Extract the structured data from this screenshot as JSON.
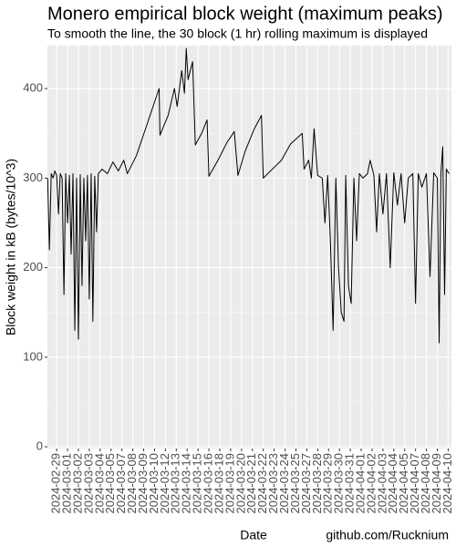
{
  "chart_data": {
    "type": "line",
    "title": "Monero empirical block weight (maximum peaks)",
    "subtitle": "To smooth the line, the 30 block (1 hr) rolling maximum is displayed",
    "x_label": "Date",
    "y_label": "Block weight in kB (bytes/10^3)",
    "caption": "github.com/Rucknium",
    "color": "#000000",
    "grid": true,
    "xlim": [
      -0.85,
      36.3
    ],
    "ylim": [
      -2,
      448
    ],
    "xticks": [
      {
        "value": 0,
        "label": "2024-02-29"
      },
      {
        "value": 1,
        "label": "2024-03-01"
      },
      {
        "value": 2,
        "label": "2024-03-02"
      },
      {
        "value": 3,
        "label": "2024-03-03"
      },
      {
        "value": 4,
        "label": "2024-03-04"
      },
      {
        "value": 5,
        "label": "2024-03-05"
      },
      {
        "value": 6,
        "label": "2024-03-07"
      },
      {
        "value": 7,
        "label": "2024-03-08"
      },
      {
        "value": 8,
        "label": "2024-03-09"
      },
      {
        "value": 9,
        "label": "2024-03-10"
      },
      {
        "value": 10,
        "label": "2024-03-12"
      },
      {
        "value": 11,
        "label": "2024-03-13"
      },
      {
        "value": 12,
        "label": "2024-03-14"
      },
      {
        "value": 13,
        "label": "2024-03-15"
      },
      {
        "value": 14,
        "label": "2024-03-16"
      },
      {
        "value": 15,
        "label": "2024-03-18"
      },
      {
        "value": 16,
        "label": "2024-03-19"
      },
      {
        "value": 17,
        "label": "2024-03-20"
      },
      {
        "value": 18,
        "label": "2024-03-21"
      },
      {
        "value": 19,
        "label": "2024-03-22"
      },
      {
        "value": 20,
        "label": "2024-03-23"
      },
      {
        "value": 21,
        "label": "2024-03-24"
      },
      {
        "value": 22,
        "label": "2024-03-25"
      },
      {
        "value": 23,
        "label": "2024-03-27"
      },
      {
        "value": 24,
        "label": "2024-03-28"
      },
      {
        "value": 25,
        "label": "2024-03-29"
      },
      {
        "value": 26,
        "label": "2024-03-30"
      },
      {
        "value": 27,
        "label": "2024-03-31"
      },
      {
        "value": 28,
        "label": "2024-04-01"
      },
      {
        "value": 29,
        "label": "2024-04-02"
      },
      {
        "value": 30,
        "label": "2024-04-03"
      },
      {
        "value": 31,
        "label": "2024-04-04"
      },
      {
        "value": 32,
        "label": "2024-04-05"
      },
      {
        "value": 33,
        "label": "2024-04-07"
      },
      {
        "value": 34,
        "label": "2024-04-08"
      },
      {
        "value": 35,
        "label": "2024-04-09"
      },
      {
        "value": 36,
        "label": "2024-04-10"
      }
    ],
    "yticks": [
      0,
      100,
      200,
      300,
      400
    ],
    "x": [
      -0.83,
      -0.67,
      -0.5,
      -0.33,
      -0.17,
      0,
      0.17,
      0.33,
      0.5,
      0.67,
      0.83,
      1,
      1.17,
      1.33,
      1.5,
      1.67,
      1.83,
      2,
      2.17,
      2.33,
      2.5,
      2.67,
      2.83,
      3,
      3.17,
      3.33,
      3.5,
      3.67,
      3.83,
      4.17,
      4.67,
      5.17,
      5.67,
      6.17,
      6.5,
      7.33,
      8.17,
      9,
      9.42,
      9.5,
      10.25,
      10.83,
      11.08,
      11.5,
      11.75,
      11.92,
      12.08,
      12.5,
      12.75,
      13.33,
      13.83,
      14,
      14.83,
      15.67,
      16.33,
      16.67,
      17.33,
      18.17,
      18.83,
      19,
      19.83,
      20.67,
      21.5,
      22.58,
      22.75,
      23.17,
      23.42,
      23.67,
      24,
      24.42,
      24.67,
      24.92,
      25.17,
      25.42,
      25.67,
      25.92,
      26.17,
      26.42,
      26.58,
      26.83,
      27.08,
      27.33,
      27.58,
      27.83,
      28.17,
      28.58,
      28.83,
      29.17,
      29.42,
      29.67,
      30,
      30.33,
      30.67,
      31,
      31.33,
      31.67,
      32,
      32.33,
      32.75,
      33,
      33.25,
      33.58,
      34,
      34.33,
      34.67,
      35,
      35.17,
      35.33,
      35.5,
      35.67,
      35.83,
      36.08
    ],
    "values": [
      300,
      220,
      305,
      300,
      308,
      303,
      260,
      305,
      300,
      170,
      305,
      250,
      303,
      215,
      305,
      130,
      300,
      120,
      304,
      180,
      300,
      230,
      303,
      165,
      305,
      140,
      302,
      240,
      305,
      310,
      305,
      318,
      308,
      320,
      305,
      325,
      355,
      385,
      400,
      348,
      370,
      400,
      380,
      420,
      395,
      445,
      410,
      430,
      337,
      350,
      365,
      302,
      320,
      340,
      352,
      303,
      330,
      355,
      370,
      300,
      310,
      320,
      338,
      350,
      310,
      320,
      300,
      355,
      303,
      300,
      250,
      303,
      230,
      130,
      300,
      200,
      150,
      140,
      303,
      180,
      160,
      300,
      230,
      305,
      300,
      305,
      320,
      303,
      240,
      305,
      260,
      305,
      200,
      306,
      270,
      305,
      250,
      300,
      305,
      160,
      305,
      290,
      305,
      190,
      306,
      300,
      116,
      305,
      335,
      170,
      310,
      305
    ]
  }
}
